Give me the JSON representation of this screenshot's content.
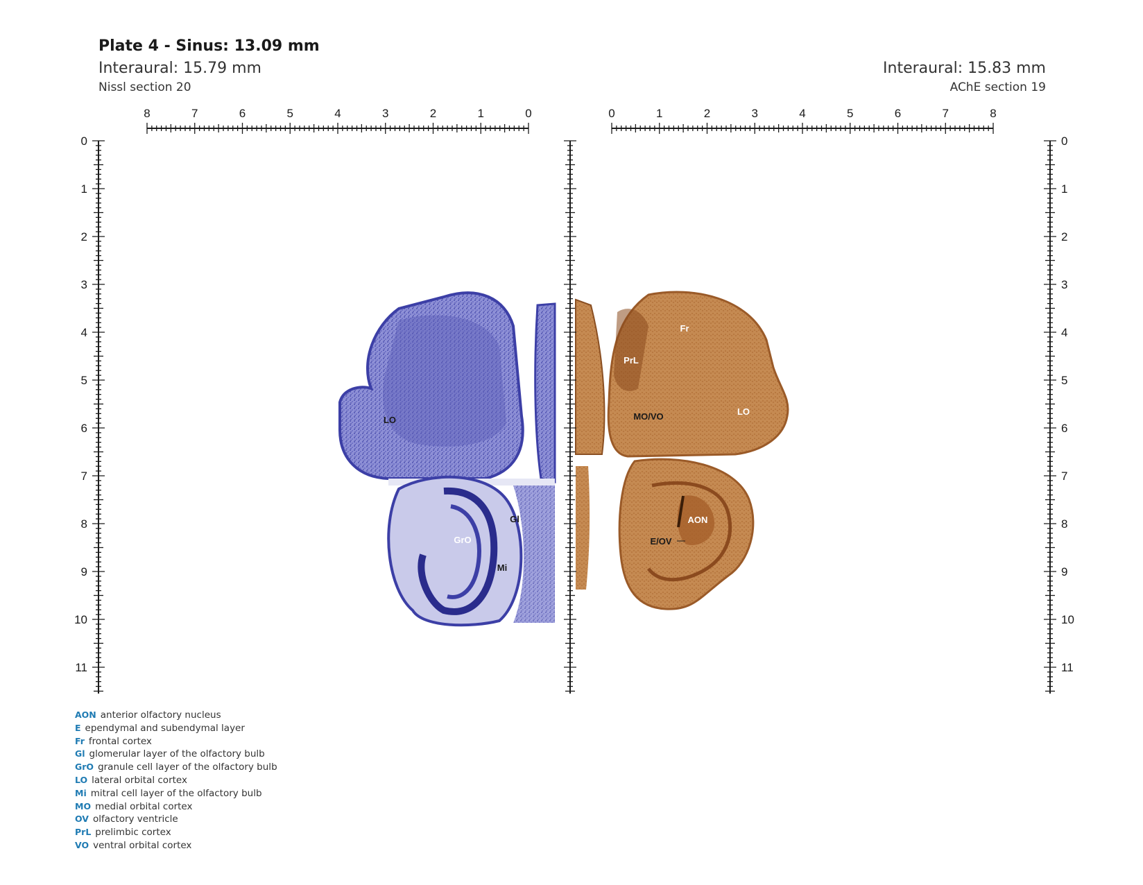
{
  "header": {
    "title": "Plate 4 - Sinus: 13.09 mm",
    "interaural_left": "Interaural: 15.79 mm",
    "interaural_right": "Interaural: 15.83 mm",
    "section_left": "Nissl section 20",
    "section_right": "AChE section 19"
  },
  "rulers": {
    "top_left_labels": [
      "8",
      "7",
      "6",
      "5",
      "4",
      "3",
      "2",
      "1",
      "0"
    ],
    "top_right_labels": [
      "0",
      "1",
      "2",
      "3",
      "4",
      "5",
      "6",
      "7",
      "8"
    ],
    "vertical_labels": [
      "0",
      "1",
      "2",
      "3",
      "4",
      "5",
      "6",
      "7",
      "8",
      "9",
      "10",
      "11"
    ]
  },
  "nissl_labels": [
    "LO",
    "GrO",
    "Gl",
    "Mi"
  ],
  "ache_labels": [
    "Fr",
    "PrL",
    "MO/VO",
    "LO",
    "AON",
    "E/OV"
  ],
  "colors": {
    "nissl": "#3c3fa6",
    "ache": "#b5733a",
    "legend_abbr": "#1f7bb3"
  },
  "legend": [
    {
      "abbr": "AON",
      "text": "anterior olfactory nucleus"
    },
    {
      "abbr": "E",
      "text": "ependymal and subendymal layer"
    },
    {
      "abbr": "Fr",
      "text": "frontal cortex"
    },
    {
      "abbr": "Gl",
      "text": "glomerular layer of the olfactory bulb"
    },
    {
      "abbr": "GrO",
      "text": "granule cell layer of the olfactory bulb"
    },
    {
      "abbr": "LO",
      "text": "lateral orbital cortex"
    },
    {
      "abbr": "Mi",
      "text": "mitral cell layer of the olfactory bulb"
    },
    {
      "abbr": "MO",
      "text": "medial orbital cortex"
    },
    {
      "abbr": "OV",
      "text": "olfactory ventricle"
    },
    {
      "abbr": "PrL",
      "text": "prelimbic cortex"
    },
    {
      "abbr": "VO",
      "text": "ventral orbital cortex"
    }
  ]
}
